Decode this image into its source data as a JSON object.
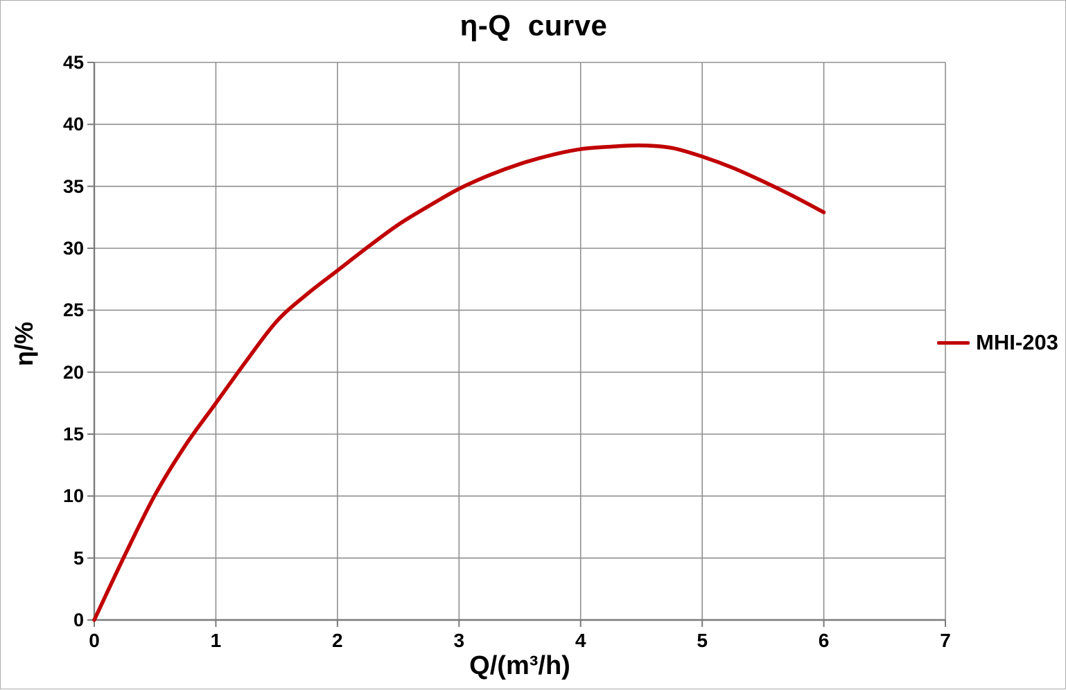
{
  "chart_data": {
    "type": "line",
    "title": "η-Q  curve",
    "xlabel": "Q/(m³/h)",
    "ylabel": "η/%",
    "xlim": [
      0,
      7
    ],
    "ylim": [
      0,
      45
    ],
    "xticks": [
      0,
      1,
      2,
      3,
      4,
      5,
      6,
      7
    ],
    "yticks": [
      0,
      5,
      10,
      15,
      20,
      25,
      30,
      35,
      40,
      45
    ],
    "grid": true,
    "legend_position": "right-middle",
    "series": [
      {
        "name": "MHI-203",
        "color": "#C00000",
        "points": [
          [
            0,
            0
          ],
          [
            0.25,
            5.2
          ],
          [
            0.5,
            10.1
          ],
          [
            0.75,
            14.1
          ],
          [
            1,
            17.5
          ],
          [
            1.25,
            20.9
          ],
          [
            1.5,
            24.1
          ],
          [
            1.75,
            26.3
          ],
          [
            2,
            28.2
          ],
          [
            2.25,
            30.1
          ],
          [
            2.5,
            31.9
          ],
          [
            2.75,
            33.4
          ],
          [
            3,
            34.8
          ],
          [
            3.25,
            35.9
          ],
          [
            3.5,
            36.8
          ],
          [
            3.75,
            37.5
          ],
          [
            4,
            38.0
          ],
          [
            4.25,
            38.2
          ],
          [
            4.5,
            38.3
          ],
          [
            4.75,
            38.1
          ],
          [
            5,
            37.4
          ],
          [
            5.25,
            36.5
          ],
          [
            5.5,
            35.4
          ],
          [
            5.75,
            34.2
          ],
          [
            6,
            32.9
          ]
        ]
      }
    ]
  },
  "style": {
    "background": "#FFFFFF",
    "border_color": "#ABABAB",
    "grid_color": "#8F8F8F",
    "axis_color": "#7A7A7A",
    "text_color": "#000000"
  }
}
